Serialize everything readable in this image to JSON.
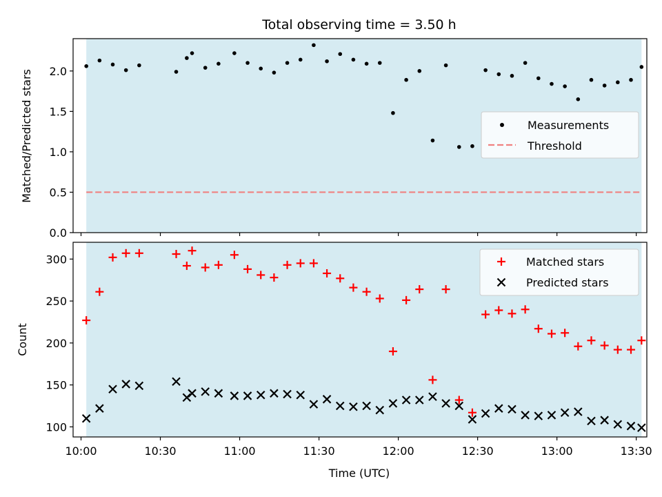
{
  "figure": {
    "title": "Total observing time = 3.50 h",
    "shade_color": "#add8e6",
    "time_axis": {
      "start": "10:00",
      "range": [
        "09:57",
        "13:34"
      ],
      "shade": [
        "10:02",
        "13:32"
      ]
    }
  },
  "chart_data": [
    {
      "type": "scatter",
      "ylabel": "Matched/Predicted stars",
      "ylim": [
        0,
        2.4
      ],
      "yticks": [
        0.0,
        0.5,
        1.0,
        1.5,
        2.0
      ],
      "ytick_labels": [
        "0.0",
        "0.5",
        "1.0",
        "1.5",
        "2.0"
      ],
      "legend": {
        "position": "center-right",
        "entries": [
          "Measurements",
          "Threshold"
        ]
      },
      "threshold": {
        "name": "Threshold",
        "value": 0.5,
        "color": "#f08080",
        "style": "dashed"
      },
      "series": [
        {
          "name": "Measurements",
          "marker": "dot",
          "color": "#000000",
          "x": [
            "10:02",
            "10:07",
            "10:12",
            "10:17",
            "10:22",
            "10:36",
            "10:40",
            "10:42",
            "10:47",
            "10:52",
            "10:58",
            "11:03",
            "11:08",
            "11:13",
            "11:18",
            "11:23",
            "11:28",
            "11:33",
            "11:38",
            "11:43",
            "11:48",
            "11:53",
            "11:58",
            "12:03",
            "12:08",
            "12:13",
            "12:18",
            "12:23",
            "12:28",
            "12:33",
            "12:38",
            "12:43",
            "12:48",
            "12:53",
            "12:58",
            "13:03",
            "13:08",
            "13:13",
            "13:18",
            "13:23",
            "13:28",
            "13:32"
          ],
          "y": [
            2.06,
            2.13,
            2.08,
            2.01,
            2.07,
            1.99,
            2.16,
            2.22,
            2.04,
            2.09,
            2.22,
            2.1,
            2.03,
            1.98,
            2.1,
            2.14,
            2.32,
            2.12,
            2.21,
            2.14,
            2.09,
            2.1,
            1.48,
            1.89,
            2.0,
            1.14,
            2.07,
            1.06,
            1.07,
            2.01,
            1.96,
            1.94,
            2.1,
            1.91,
            1.84,
            1.81,
            1.65,
            1.89,
            1.82,
            1.86,
            1.89,
            2.05
          ]
        }
      ]
    },
    {
      "type": "scatter",
      "xlabel": "Time (UTC)",
      "ylabel": "Count",
      "ylim": [
        88,
        320
      ],
      "yticks": [
        100,
        150,
        200,
        250,
        300
      ],
      "ytick_labels": [
        "100",
        "150",
        "200",
        "250",
        "300"
      ],
      "xticks": [
        "10:00",
        "10:30",
        "11:00",
        "11:30",
        "12:00",
        "12:30",
        "13:00",
        "13:30"
      ],
      "xtick_labels": [
        "10:00",
        "10:30",
        "11:00",
        "11:30",
        "12:00",
        "12:30",
        "13:00",
        "13:30"
      ],
      "legend": {
        "position": "top-right",
        "entries": [
          "Matched stars",
          "Predicted stars"
        ]
      },
      "series": [
        {
          "name": "Matched stars",
          "marker": "plus",
          "color": "#ff0000",
          "x": [
            "10:02",
            "10:07",
            "10:12",
            "10:17",
            "10:22",
            "10:36",
            "10:40",
            "10:42",
            "10:47",
            "10:52",
            "10:58",
            "11:03",
            "11:08",
            "11:13",
            "11:18",
            "11:23",
            "11:28",
            "11:33",
            "11:38",
            "11:43",
            "11:48",
            "11:53",
            "11:58",
            "12:03",
            "12:08",
            "12:13",
            "12:18",
            "12:23",
            "12:28",
            "12:33",
            "12:38",
            "12:43",
            "12:48",
            "12:53",
            "12:58",
            "13:03",
            "13:08",
            "13:13",
            "13:18",
            "13:23",
            "13:28",
            "13:32"
          ],
          "y": [
            227,
            261,
            302,
            307,
            307,
            306,
            292,
            310,
            290,
            293,
            305,
            288,
            281,
            278,
            293,
            295,
            295,
            283,
            277,
            266,
            261,
            253,
            190,
            251,
            264,
            156,
            264,
            132,
            117,
            234,
            239,
            235,
            240,
            217,
            211,
            212,
            196,
            203,
            197,
            192,
            192,
            203
          ]
        },
        {
          "name": "Predicted stars",
          "marker": "x",
          "color": "#000000",
          "x": [
            "10:02",
            "10:07",
            "10:12",
            "10:17",
            "10:22",
            "10:36",
            "10:40",
            "10:42",
            "10:47",
            "10:52",
            "10:58",
            "11:03",
            "11:08",
            "11:13",
            "11:18",
            "11:23",
            "11:28",
            "11:33",
            "11:38",
            "11:43",
            "11:48",
            "11:53",
            "11:58",
            "12:03",
            "12:08",
            "12:13",
            "12:18",
            "12:23",
            "12:28",
            "12:33",
            "12:38",
            "12:43",
            "12:48",
            "12:53",
            "12:58",
            "13:03",
            "13:08",
            "13:13",
            "13:18",
            "13:23",
            "13:28",
            "13:32"
          ],
          "y": [
            110,
            122,
            145,
            151,
            149,
            154,
            135,
            140,
            142,
            140,
            137,
            137,
            138,
            140,
            139,
            138,
            127,
            133,
            125,
            124,
            125,
            120,
            128,
            132,
            132,
            136,
            128,
            125,
            109,
            116,
            122,
            121,
            114,
            113,
            114,
            117,
            118,
            107,
            108,
            103,
            101,
            99
          ]
        }
      ]
    }
  ]
}
